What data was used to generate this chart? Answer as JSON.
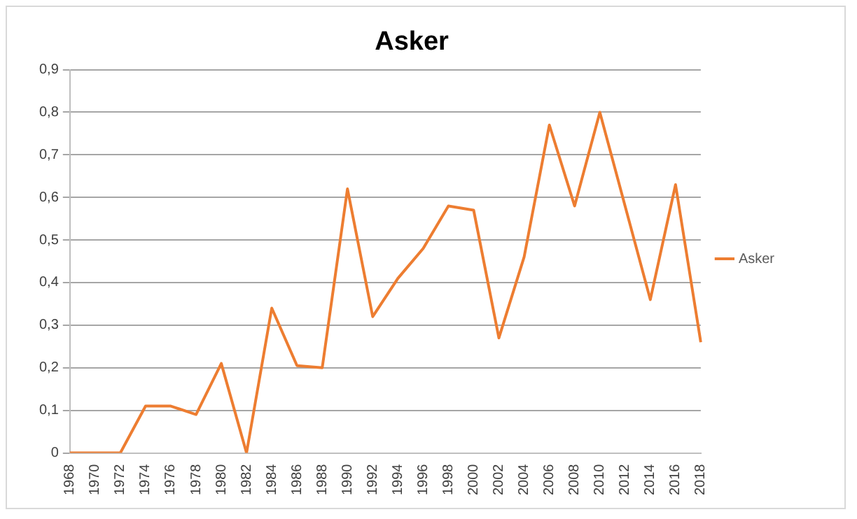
{
  "chart_data": {
    "type": "line",
    "title": "Asker",
    "categories": [
      "1968",
      "1970",
      "1972",
      "1974",
      "1976",
      "1978",
      "1980",
      "1982",
      "1984",
      "1986",
      "1988",
      "1990",
      "1992",
      "1994",
      "1996",
      "1998",
      "2000",
      "2002",
      "2004",
      "2006",
      "2008",
      "2010",
      "2012",
      "2014",
      "2016",
      "2018"
    ],
    "series": [
      {
        "name": "Asker",
        "color": "#ed7d31",
        "values": [
          0,
          0,
          0,
          0.11,
          0.11,
          0.09,
          0.21,
          0,
          0.34,
          0.205,
          0.2,
          0.62,
          0.32,
          0.41,
          0.48,
          0.58,
          0.57,
          0.27,
          0.46,
          0.77,
          0.58,
          0.8,
          0.58,
          0.36,
          0.63,
          0.26
        ]
      }
    ],
    "ylim": [
      0,
      0.9
    ],
    "yticks": [
      {
        "value": 0,
        "label": "0"
      },
      {
        "value": 0.1,
        "label": "0,1"
      },
      {
        "value": 0.2,
        "label": "0,2"
      },
      {
        "value": 0.3,
        "label": "0,3"
      },
      {
        "value": 0.4,
        "label": "0,4"
      },
      {
        "value": 0.5,
        "label": "0,5"
      },
      {
        "value": 0.6,
        "label": "0,6"
      },
      {
        "value": 0.7,
        "label": "0,7"
      },
      {
        "value": 0.8,
        "label": "0,8"
      },
      {
        "value": 0.9,
        "label": "0,9"
      }
    ],
    "grid": "y",
    "legend": "right",
    "marker": "none",
    "line_style": "solid"
  }
}
